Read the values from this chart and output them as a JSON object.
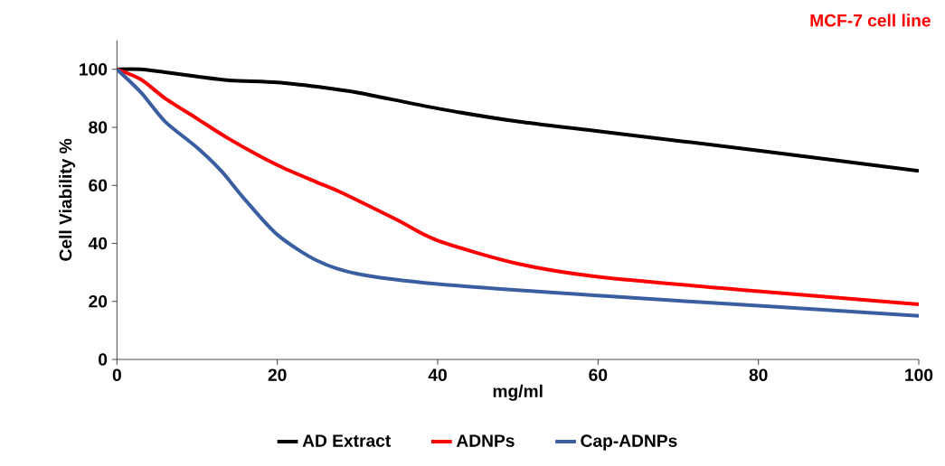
{
  "chart_data": {
    "type": "line",
    "title": "MCF-7 cell line",
    "xlabel": "mg/ml",
    "ylabel": "Cell Viability %",
    "xlim": [
      0,
      100
    ],
    "ylim": [
      0,
      110
    ],
    "xticks": [
      0,
      20,
      40,
      60,
      80,
      100
    ],
    "yticks": [
      0,
      20,
      40,
      60,
      80,
      100
    ],
    "grid": false,
    "legend": "bottom",
    "marker": "none",
    "line_style": "solid",
    "series": [
      {
        "name": "AD Extract",
        "color": "#000000",
        "x": [
          0,
          3,
          6,
          10,
          14,
          20,
          25,
          30,
          40,
          50,
          60,
          80,
          100
        ],
        "values": [
          100,
          100,
          99,
          97.5,
          96.2,
          95.5,
          94,
          92,
          86.5,
          82,
          78.7,
          72,
          65
        ]
      },
      {
        "name": "ADNPs",
        "color": "#ff0000",
        "x": [
          0,
          3,
          6,
          10,
          14,
          20,
          25,
          28,
          35,
          40,
          50,
          60,
          80,
          100
        ],
        "values": [
          100,
          96.5,
          90,
          83,
          76,
          67,
          61,
          57.5,
          48,
          41,
          33,
          28.5,
          23.5,
          19
        ]
      },
      {
        "name": "Cap-ADNPs",
        "color": "#3a5fa0",
        "x": [
          0,
          3,
          6,
          10,
          13,
          16,
          20,
          25,
          30,
          40,
          60,
          80,
          100
        ],
        "values": [
          100,
          92,
          82,
          73,
          65,
          55,
          43,
          34,
          29.5,
          26,
          22,
          18.5,
          15
        ]
      }
    ]
  }
}
